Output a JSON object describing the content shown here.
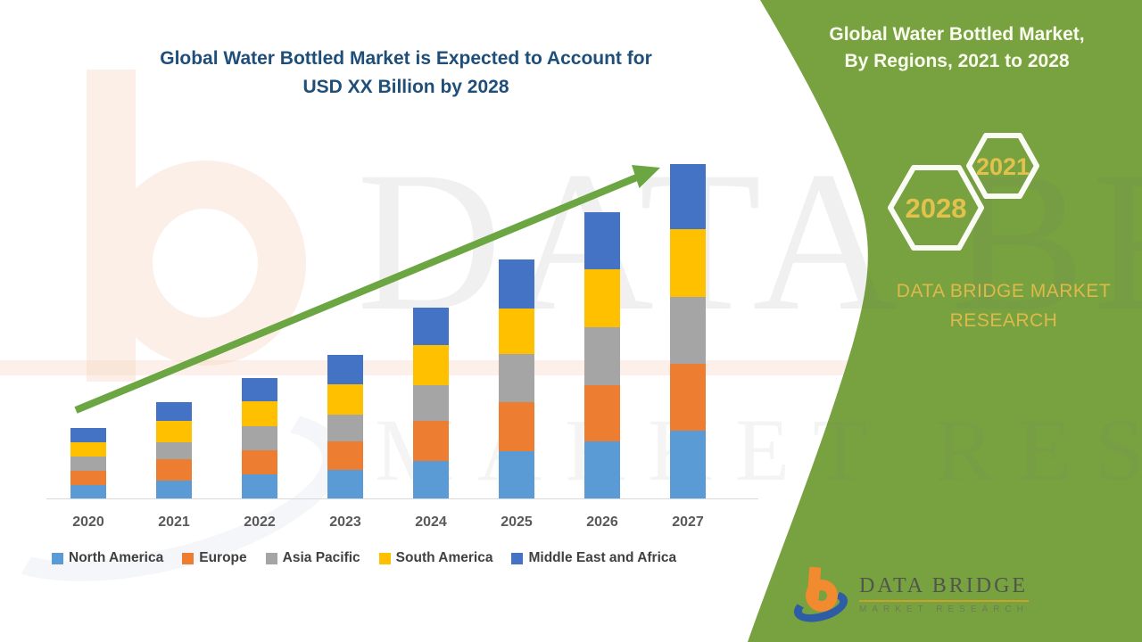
{
  "header": {
    "chart_title_line1": "Global Water Bottled Market is Expected to Account for",
    "chart_title_line2": "USD XX Billion by 2028"
  },
  "side_panel": {
    "title_line1": "Global Water Bottled Market,",
    "title_line2": "By Regions, 2021 to 2028",
    "hexagon_badges": [
      "2028",
      "2021"
    ],
    "brand_line1": "DATA BRIDGE MARKET",
    "brand_line2": "RESEARCH",
    "colors": {
      "panel_green": "#78A240",
      "badge_text_gold": "#E2C24D",
      "brand_text_gold": "#DDB94B",
      "hexagon_stroke": "#FBFBF6"
    }
  },
  "chart_data": {
    "type": "bar",
    "stacked": true,
    "title": "Global Water Bottled Market is Expected to Account for USD XX Billion by 2028",
    "categories": [
      "2020",
      "2021",
      "2022",
      "2023",
      "2024",
      "2025",
      "2026",
      "2027"
    ],
    "series": [
      {
        "name": "North America",
        "color": "#5B9BD5",
        "values": [
          15,
          20,
          27,
          32,
          42,
          53,
          64,
          76
        ]
      },
      {
        "name": "Europe",
        "color": "#ED7D31",
        "values": [
          16,
          24,
          27,
          32,
          45,
          55,
          63,
          75
        ]
      },
      {
        "name": "Asia Pacific",
        "color": "#A5A5A5",
        "values": [
          16,
          19,
          27,
          30,
          40,
          54,
          65,
          75
        ]
      },
      {
        "name": "South America",
        "color": "#FFC000",
        "values": [
          16,
          24,
          28,
          34,
          45,
          51,
          65,
          76
        ]
      },
      {
        "name": "Middle East and Africa",
        "color": "#4472C4",
        "values": [
          16,
          21,
          26,
          33,
          42,
          55,
          64,
          73
        ]
      }
    ],
    "stack_totals": [
      79,
      108,
      135,
      161,
      214,
      268,
      321,
      375
    ],
    "xlabel": "",
    "ylabel": "",
    "units": "relative height; value axis unlabeled (values shown as USD XX Billion)",
    "value_axis_visible": false,
    "grid": false,
    "legend_position": "bottom",
    "annotations": [
      "green upward trend arrow from 2020 to 2027"
    ]
  },
  "watermark": {
    "line1": "DATA BRIDGE",
    "line2": "MARKET RESEARCH"
  },
  "footer_logo": {
    "name": "DATA BRIDGE",
    "tagline": "MARKET RESEARCH"
  }
}
